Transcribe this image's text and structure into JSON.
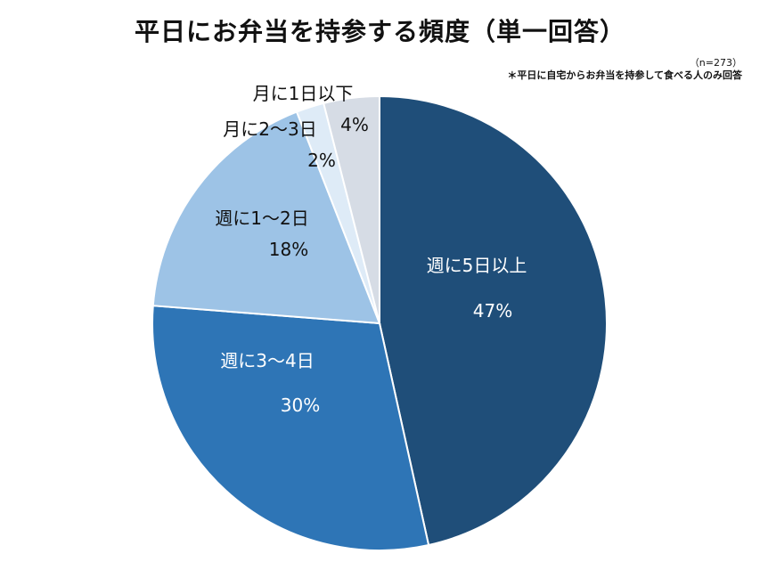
{
  "chart_data": {
    "type": "pie",
    "title": "平日にお弁当を持参する頻度（単一回答）",
    "sample_size": "（n=273）",
    "note": "＊平日に自宅からお弁当を持参して食べる人のみ回答",
    "slices": [
      {
        "label": "週に5日以上",
        "value": 47,
        "value_label": "47%",
        "color": "#1f4e79",
        "text_color": "#ffffff"
      },
      {
        "label": "週に3～4日",
        "value": 30,
        "value_label": "30%",
        "color": "#2e75b6",
        "text_color": "#ffffff"
      },
      {
        "label": "週に1～2日",
        "value": 18,
        "value_label": "18%",
        "color": "#9dc3e6",
        "text_color": "#111111"
      },
      {
        "label": "月に2～3日",
        "value": 2,
        "value_label": "2%",
        "color": "#deebf7",
        "text_color": "#111111"
      },
      {
        "label": "月に1日以下",
        "value": 4,
        "value_label": "4%",
        "color": "#d6dce5",
        "text_color": "#111111"
      }
    ],
    "start": "top",
    "direction": "clockwise"
  }
}
